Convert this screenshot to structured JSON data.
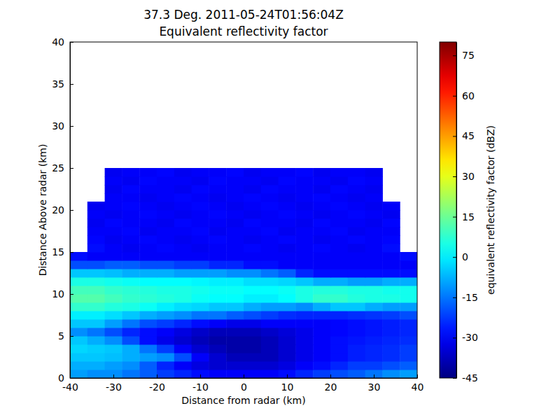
{
  "chart_data": {
    "type": "heatmap",
    "title": "37.3 Deg. 2011-05-24T01:56:04Z",
    "subtitle": "Equivalent reflectivity factor",
    "x_label": "Distance from radar (km)",
    "y_label": "Distance Above radar  (km)",
    "xlim": [
      -40,
      40
    ],
    "ylim": [
      0,
      40
    ],
    "xticks": [
      -40,
      -30,
      -20,
      -10,
      0,
      10,
      20,
      30,
      40
    ],
    "yticks": [
      0,
      5,
      10,
      15,
      20,
      25,
      30,
      35,
      40
    ],
    "x_edges": [
      -40,
      -36,
      -32,
      -28,
      -24,
      -20,
      -16,
      -12,
      -8,
      -4,
      0,
      4,
      8,
      12,
      16,
      20,
      24,
      28,
      32,
      36,
      40
    ],
    "y_edges": [
      0,
      1,
      2,
      3,
      4,
      5,
      6,
      7,
      8,
      9,
      10,
      11,
      12,
      13,
      14,
      15,
      16,
      17,
      18,
      19,
      20,
      21,
      22,
      23,
      24,
      25
    ],
    "cells": [
      [
        -10,
        -12,
        -12,
        -15,
        -18,
        -22,
        -25,
        -28,
        -30,
        -30,
        -30,
        -30,
        -28,
        -25,
        -22,
        -20,
        -18,
        -15,
        -12,
        -10
      ],
      [
        -8,
        -8,
        -10,
        -12,
        -18,
        -25,
        -30,
        -33,
        -35,
        -35,
        -35,
        -35,
        -33,
        -30,
        -28,
        -25,
        -22,
        -22,
        -20,
        -18
      ],
      [
        -5,
        -5,
        -6,
        -8,
        -10,
        -12,
        -20,
        -30,
        -35,
        -38,
        -38,
        -38,
        -35,
        -32,
        -30,
        -28,
        -26,
        -25,
        -24,
        -22
      ],
      [
        -3,
        -4,
        -5,
        -8,
        -15,
        -22,
        -30,
        -35,
        -38,
        -40,
        -40,
        -38,
        -35,
        -32,
        -30,
        -28,
        -26,
        -25,
        -24,
        -22
      ],
      [
        -5,
        -8,
        -12,
        -20,
        -28,
        -32,
        -35,
        -38,
        -40,
        -40,
        -40,
        -38,
        -35,
        -32,
        -30,
        -28,
        -27,
        -26,
        -25,
        -24
      ],
      [
        -12,
        -15,
        -20,
        -25,
        -28,
        -30,
        -33,
        -36,
        -38,
        -38,
        -38,
        -36,
        -34,
        -32,
        -30,
        -29,
        -28,
        -27,
        -26,
        -25
      ],
      [
        -5,
        -5,
        -10,
        -15,
        -20,
        -22,
        -25,
        -28,
        -30,
        -32,
        -32,
        -30,
        -30,
        -30,
        -30,
        -29,
        -28,
        -27,
        -26,
        -25
      ],
      [
        0,
        0,
        -2,
        -5,
        -8,
        -10,
        -12,
        -15,
        -15,
        -18,
        -20,
        -22,
        -24,
        -25,
        -25,
        -25,
        -24,
        -23,
        -22,
        -20
      ],
      [
        8,
        8,
        6,
        5,
        3,
        0,
        -2,
        -3,
        -5,
        -5,
        -8,
        -10,
        -10,
        -12,
        -8,
        -5,
        -5,
        -8,
        -10,
        -10
      ],
      [
        12,
        12,
        10,
        8,
        7,
        6,
        5,
        3,
        2,
        2,
        0,
        0,
        2,
        5,
        8,
        8,
        6,
        5,
        5,
        4
      ],
      [
        10,
        10,
        8,
        7,
        6,
        5,
        5,
        4,
        3,
        3,
        2,
        2,
        3,
        5,
        6,
        6,
        5,
        5,
        4,
        4
      ],
      [
        5,
        5,
        4,
        3,
        2,
        2,
        2,
        1,
        0,
        0,
        -2,
        -2,
        -3,
        -5,
        -8,
        -8,
        -10,
        -10,
        -8,
        -8
      ],
      [
        -5,
        -5,
        -6,
        -8,
        -8,
        -8,
        -10,
        -10,
        -10,
        -12,
        -12,
        -15,
        -18,
        -25,
        -28,
        -28,
        -28,
        -28,
        -28,
        -28
      ],
      [
        -20,
        -20,
        -18,
        -18,
        -20,
        -20,
        -22,
        -22,
        -25,
        -25,
        -28,
        -28,
        -30,
        -30,
        -30,
        -30,
        -30,
        -30,
        -30,
        -30
      ],
      [
        -28,
        -30,
        -30,
        -30,
        -30,
        -30,
        -30,
        -30,
        -30,
        -30,
        -30,
        -30,
        -30,
        -30,
        -30,
        -30,
        -30,
        -30,
        -30,
        -28
      ],
      [
        null,
        -28,
        -30,
        -31,
        -30,
        -29,
        -30,
        -31,
        -30,
        -30,
        -29,
        -30,
        -31,
        -30,
        -29,
        -30,
        -31,
        -30,
        -28,
        null
      ],
      [
        null,
        -29,
        -31,
        -30,
        -29,
        -30,
        -31,
        -30,
        -29,
        -30,
        -31,
        -30,
        -29,
        -30,
        -31,
        -30,
        -29,
        -30,
        -29,
        null
      ],
      [
        null,
        -30,
        -30,
        -29,
        -31,
        -30,
        -30,
        -29,
        -31,
        -30,
        -30,
        -29,
        -31,
        -30,
        -30,
        -29,
        -31,
        -30,
        -30,
        null
      ],
      [
        null,
        -31,
        -29,
        -30,
        -30,
        -31,
        -29,
        -30,
        -30,
        -31,
        -29,
        -30,
        -30,
        -31,
        -29,
        -30,
        -30,
        -31,
        -29,
        null
      ],
      [
        null,
        -30,
        -31,
        -30,
        -29,
        -30,
        -31,
        -30,
        -29,
        -30,
        -31,
        -30,
        -29,
        -30,
        -31,
        -30,
        -29,
        -30,
        -31,
        null
      ],
      [
        null,
        -31,
        -30,
        -29,
        -30,
        -31,
        -30,
        -29,
        -30,
        -31,
        -30,
        -29,
        -30,
        -31,
        -30,
        -29,
        -30,
        -31,
        -30,
        null
      ],
      [
        null,
        null,
        -30,
        -30,
        -31,
        -30,
        -29,
        -30,
        -31,
        -30,
        -29,
        -30,
        -31,
        -30,
        -29,
        -30,
        -31,
        -30,
        null,
        null
      ],
      [
        null,
        null,
        -31,
        -29,
        -30,
        -30,
        -31,
        -29,
        -30,
        -30,
        -31,
        -29,
        -30,
        -30,
        -31,
        -29,
        -30,
        -31,
        null,
        null
      ],
      [
        null,
        null,
        -30,
        -31,
        -29,
        -30,
        -30,
        -31,
        -29,
        -30,
        -30,
        -31,
        -29,
        -30,
        -30,
        -31,
        -29,
        -30,
        null,
        null
      ],
      [
        null,
        null,
        -31,
        -30,
        -30,
        -29,
        -31,
        -30,
        -30,
        -29,
        -31,
        -30,
        -30,
        -29,
        -31,
        -30,
        -30,
        -31,
        null,
        null
      ]
    ],
    "colorbar": {
      "label": "equivalent reflectivity factor (dBZ)",
      "range": [
        -45,
        80
      ],
      "ticks": [
        -45,
        -30,
        -15,
        0,
        15,
        30,
        45,
        60,
        75
      ]
    }
  }
}
